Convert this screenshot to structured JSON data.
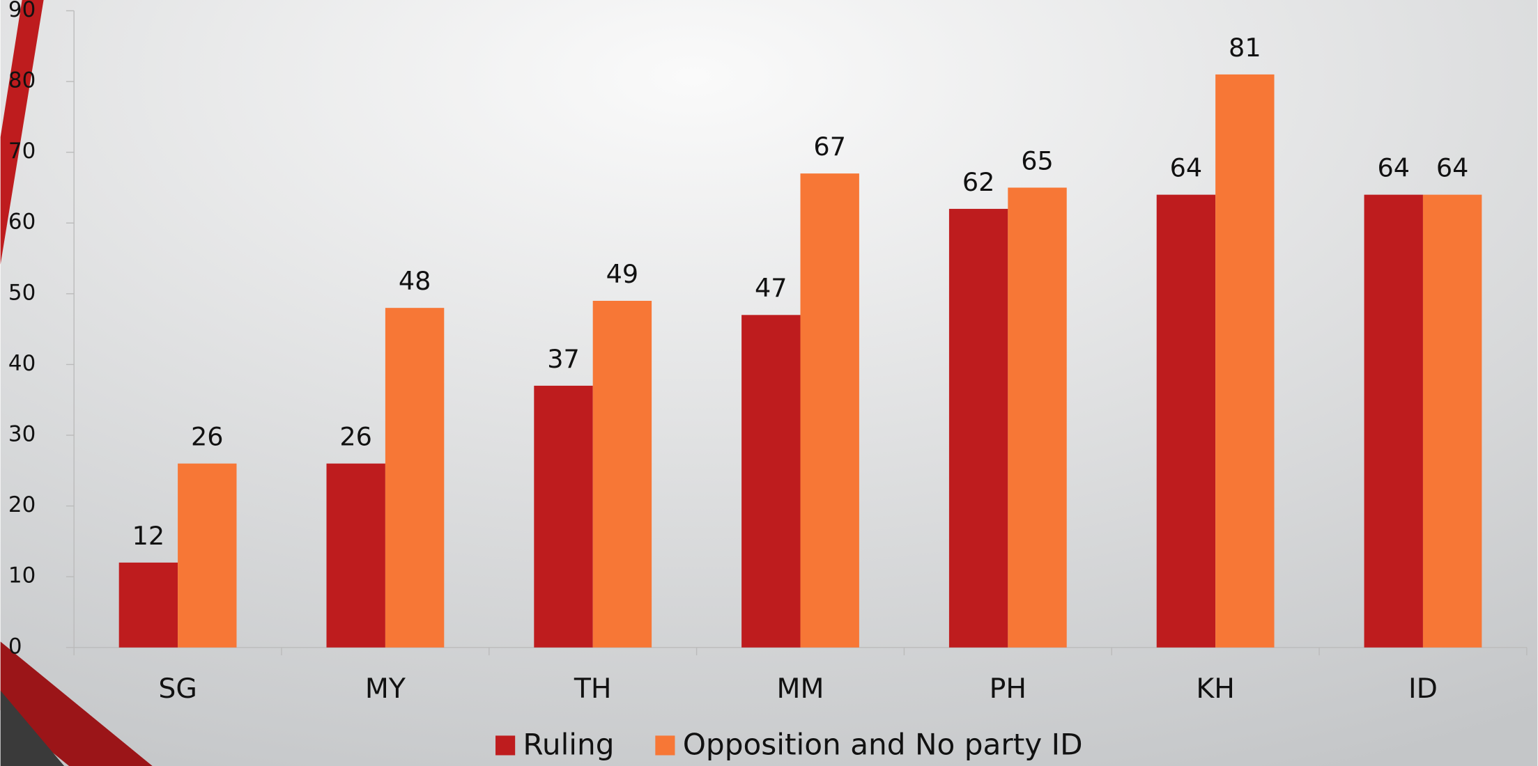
{
  "chart_data": {
    "type": "bar",
    "categories": [
      "SG",
      "MY",
      "TH",
      "MM",
      "PH",
      "KH",
      "ID"
    ],
    "series": [
      {
        "name": "Ruling",
        "color": "#be1c1e",
        "values": [
          12,
          26,
          37,
          47,
          62,
          64,
          64
        ]
      },
      {
        "name": "Opposition and No party ID",
        "color": "#f77736",
        "values": [
          26,
          48,
          49,
          67,
          65,
          81,
          64
        ]
      }
    ],
    "ylim": [
      0,
      90
    ],
    "yticks": [
      0,
      10,
      20,
      30,
      40,
      50,
      60,
      70,
      80,
      90
    ],
    "legend": "bottom"
  }
}
